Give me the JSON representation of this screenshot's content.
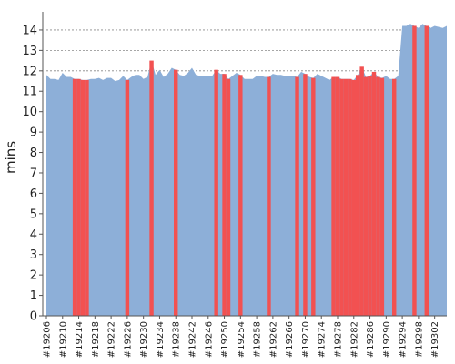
{
  "chart_data": {
    "type": "area",
    "xlabel": "",
    "ylabel": "mins",
    "ylim": [
      0,
      14.8
    ],
    "y_ticks": [
      0,
      1,
      2,
      3,
      4,
      5,
      6,
      7,
      8,
      9,
      10,
      11,
      12,
      13,
      14
    ],
    "grid": "horizontal dashed at whole-minute ticks",
    "x_start_build": 19206,
    "x_end_build": 19305,
    "x_ticks": [
      "#19206",
      "#19210",
      "#19214",
      "#19218",
      "#19222",
      "#19226",
      "#19230",
      "#19234",
      "#19238",
      "#19242",
      "#19246",
      "#19250",
      "#19254",
      "#19258",
      "#19262",
      "#19266",
      "#19270",
      "#19274",
      "#19278",
      "#19282",
      "#19286",
      "#19290",
      "#19294",
      "#19298",
      "#19302"
    ],
    "series_values": [
      11.8,
      11.6,
      11.6,
      11.55,
      11.9,
      11.7,
      11.7,
      11.6,
      11.6,
      11.55,
      11.55,
      11.6,
      11.6,
      11.65,
      11.55,
      11.65,
      11.65,
      11.5,
      11.55,
      11.75,
      11.55,
      11.7,
      11.8,
      11.8,
      11.6,
      11.7,
      12.5,
      11.8,
      12.05,
      11.7,
      11.85,
      12.15,
      12.05,
      11.8,
      11.75,
      11.9,
      12.15,
      11.8,
      11.75,
      11.75,
      11.75,
      11.75,
      12.05,
      11.85,
      11.85,
      11.6,
      11.75,
      11.9,
      11.8,
      11.6,
      11.6,
      11.6,
      11.75,
      11.75,
      11.7,
      11.7,
      11.85,
      11.8,
      11.8,
      11.75,
      11.75,
      11.75,
      11.7,
      11.95,
      11.85,
      11.7,
      11.65,
      11.85,
      11.75,
      11.65,
      11.55,
      11.7,
      11.7,
      11.6,
      11.6,
      11.6,
      11.55,
      11.8,
      12.2,
      11.7,
      11.75,
      11.95,
      11.7,
      11.65,
      11.75,
      11.6,
      11.6,
      11.75,
      14.2,
      14.2,
      14.3,
      14.2,
      14.1,
      14.3,
      14.2,
      14.1,
      14.2,
      14.15,
      14.1,
      14.2
    ],
    "failed_builds": [
      19213,
      19214,
      19215,
      19216,
      19226,
      19232,
      19238,
      19248,
      19250,
      19251,
      19254,
      19261,
      19268,
      19270,
      19272,
      19277,
      19278,
      19279,
      19280,
      19281,
      19282,
      19283,
      19284,
      19285,
      19286,
      19287,
      19288,
      19289,
      19292,
      19297,
      19300
    ],
    "colors": {
      "area": "#8dafd8",
      "failed": "#f25151",
      "grid": "#888888",
      "axis": "#555555",
      "text": "#222222"
    }
  }
}
